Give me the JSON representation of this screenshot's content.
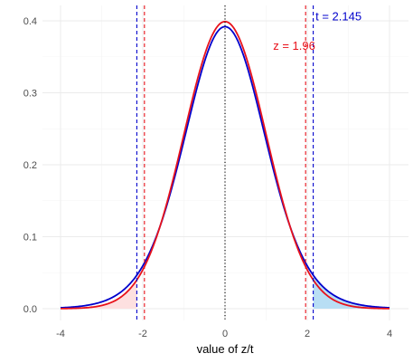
{
  "chart_data": {
    "type": "line",
    "xlabel": "value of z/t",
    "ylabel": "",
    "xlim": [
      -4,
      4
    ],
    "ylim": [
      0,
      0.4
    ],
    "x_ticks": [
      "-4",
      "-2",
      "0",
      "2",
      "4"
    ],
    "y_ticks": [
      "0.0",
      "0.1",
      "0.2",
      "0.3",
      "0.4"
    ],
    "grid": true,
    "series": [
      {
        "color": "#0000cc",
        "x": [
          -4,
          -3.5,
          -3,
          -2.5,
          -2.145,
          -2,
          -1.5,
          -1,
          -0.5,
          0,
          0.5,
          1,
          1.5,
          2,
          2.145,
          2.5,
          3,
          3.5,
          4
        ],
        "y": [
          0.004,
          0.008,
          0.016,
          0.032,
          0.047,
          0.055,
          0.117,
          0.234,
          0.341,
          0.392,
          0.341,
          0.234,
          0.117,
          0.055,
          0.047,
          0.032,
          0.016,
          0.008,
          0.004
        ]
      },
      {
        "color": "#e8121b",
        "x": [
          -4,
          -3.5,
          -3,
          -2.5,
          -1.96,
          -1.5,
          -1,
          -0.5,
          0,
          0.5,
          1,
          1.5,
          1.96,
          2.5,
          3,
          3.5,
          4
        ],
        "y": [
          0.0001,
          0.0009,
          0.004,
          0.0175,
          0.058,
          0.13,
          0.242,
          0.352,
          0.399,
          0.352,
          0.242,
          0.13,
          0.058,
          0.0175,
          0.004,
          0.0009,
          0.0001
        ]
      }
    ],
    "vlines": [
      {
        "x": -2.145,
        "color": "#0000cc",
        "style": "dashed"
      },
      {
        "x": 2.145,
        "color": "#0000cc",
        "style": "dashed"
      },
      {
        "x": -1.96,
        "color": "#e8121b",
        "style": "dashed"
      },
      {
        "x": 1.96,
        "color": "#e8121b",
        "style": "dashed"
      },
      {
        "x": 0,
        "color": "#000000",
        "style": "dotted"
      }
    ],
    "shaded_tails": [
      {
        "from": -4,
        "to": -2.145,
        "series": 1,
        "color": "#fde0e0"
      },
      {
        "from": 2.145,
        "to": 4,
        "series": 0,
        "color": "#b8def4"
      }
    ],
    "annotations": [
      {
        "text": "z = 1.96",
        "x": 1.17,
        "y": 0.366,
        "color": "#e8121b"
      },
      {
        "text": "t = 2.145",
        "x": 2.2,
        "y": 0.407,
        "color": "#0000cc"
      }
    ]
  }
}
